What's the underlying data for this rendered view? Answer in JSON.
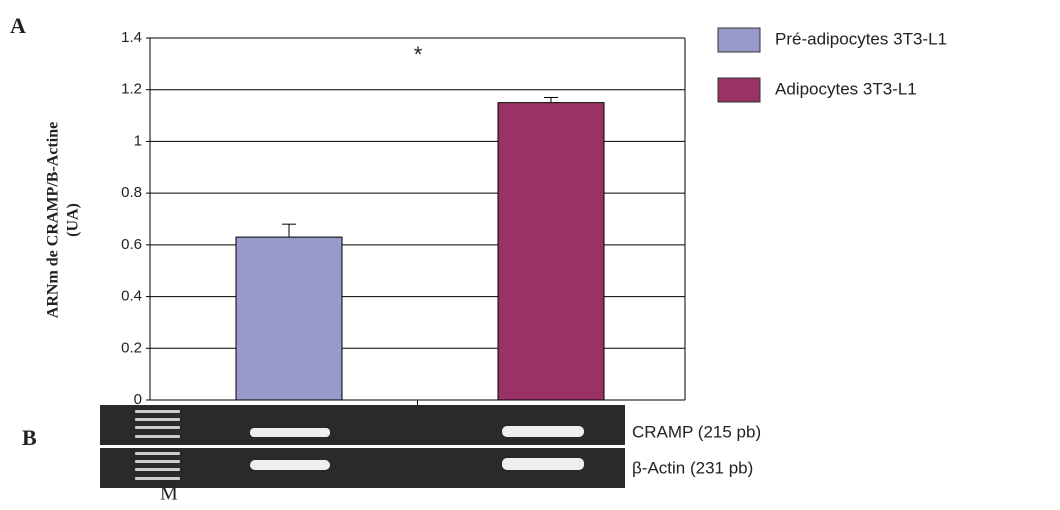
{
  "chart_data": {
    "type": "bar",
    "y_label": [
      "ARNm de CRAMP/B-Actine",
      "(UA)"
    ],
    "categories": [
      null
    ],
    "series": [
      {
        "name": "Pré-adipocytes 3T3-L1",
        "color": "#9999cc",
        "values": [
          0.63
        ],
        "errors": [
          0.05
        ]
      },
      {
        "name": "Adipocytes 3T3-L1",
        "color": "#993366",
        "values": [
          1.15
        ],
        "errors": [
          0.02
        ]
      }
    ],
    "ylim": [
      0,
      1.4
    ],
    "yticks": [
      0,
      0.2,
      0.4,
      0.6,
      0.8,
      1,
      1.2,
      1.4
    ],
    "grid": true,
    "annotations": [
      "*"
    ],
    "legend": "right"
  },
  "panels": {
    "a": "A",
    "b": "B"
  },
  "gel": {
    "bands": [
      "CRAMP (215 pb)",
      "β-Actin (231 pb)"
    ],
    "marker": "M"
  }
}
